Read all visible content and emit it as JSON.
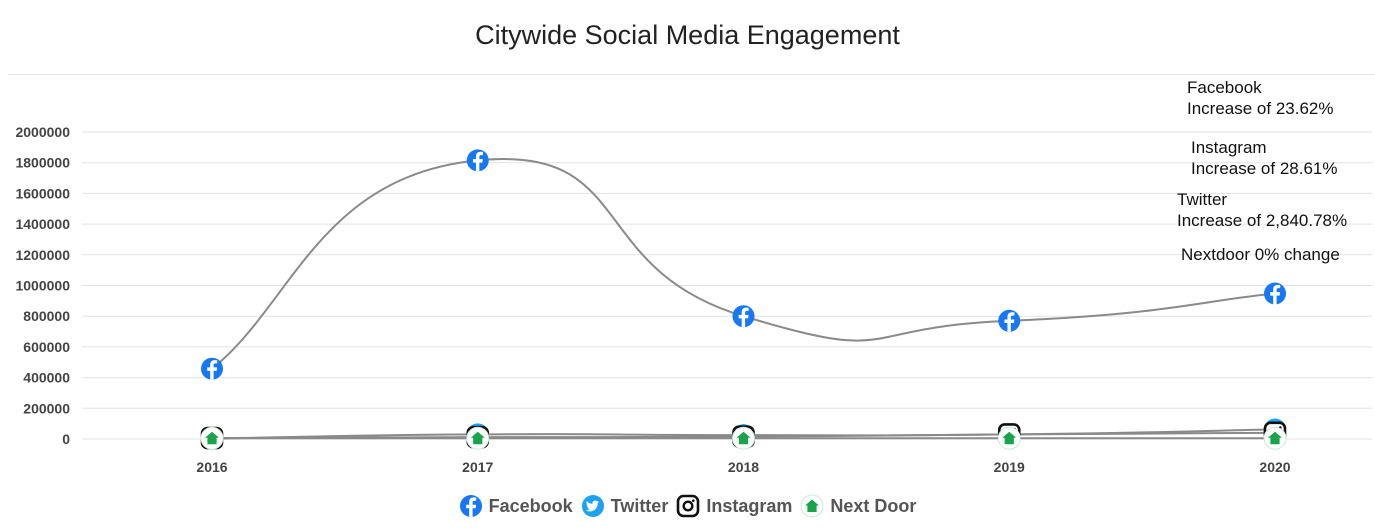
{
  "chart_data": {
    "type": "line",
    "title": "Citywide Social Media Engagement",
    "categories": [
      "2016",
      "2017",
      "2018",
      "2019",
      "2020"
    ],
    "ylim": [
      0,
      2000000
    ],
    "yticks": [
      0,
      200000,
      400000,
      600000,
      800000,
      1000000,
      1200000,
      1400000,
      1600000,
      1800000,
      2000000
    ],
    "grid": true,
    "legend_position": "bottom",
    "series": [
      {
        "name": "Facebook",
        "icon": "facebook-icon",
        "color": "#1877f2",
        "values": [
          458000,
          1815000,
          800000,
          770000,
          948000
        ]
      },
      {
        "name": "Twitter",
        "icon": "twitter-icon",
        "color": "#1da1f2",
        "values": [
          2000,
          30000,
          25000,
          30000,
          62000
        ]
      },
      {
        "name": "Instagram",
        "icon": "instagram-icon",
        "color": "#111111",
        "values": [
          6000,
          12000,
          15000,
          30000,
          40000
        ]
      },
      {
        "name": "Next Door",
        "icon": "nextdoor-icon",
        "color": "#19a34a",
        "values": [
          5000,
          5000,
          5000,
          5000,
          5000
        ]
      }
    ],
    "line_color": "#8a8a8a",
    "annotations": [
      {
        "line1": "Facebook",
        "line2": "Increase of 23.62%"
      },
      {
        "line1": "Instagram",
        "line2": "Increase of 28.61%"
      },
      {
        "line1": "Twitter",
        "line2": "Increase of 2,840.78%"
      },
      {
        "line1": "Nextdoor 0% change",
        "line2": ""
      }
    ]
  }
}
